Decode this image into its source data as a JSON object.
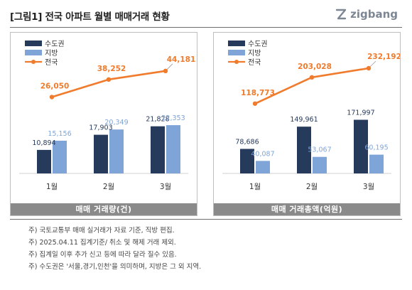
{
  "title": "[그림1] 전국 아파트 월별 매매거래 현황",
  "logo": {
    "text": "zigbang",
    "icon": "zigbang-logo-icon"
  },
  "colors": {
    "metro": "#263a5c",
    "regional": "#7fa4d8",
    "national": "#f07b2c",
    "footer": "#8a8a8a"
  },
  "chart_data": [
    {
      "type": "bar",
      "footer": "매매 거래량(건)",
      "legend": [
        "수도권",
        "지방",
        "전국"
      ],
      "categories": [
        "1월",
        "2월",
        "3월"
      ],
      "series": [
        {
          "name": "수도권",
          "type": "bar",
          "values": [
            10894,
            17903,
            21828
          ],
          "labels": [
            "10,894",
            "17,903",
            "21,828"
          ]
        },
        {
          "name": "지방",
          "type": "bar",
          "values": [
            15156,
            20349,
            22353
          ],
          "labels": [
            "15,156",
            "20,349",
            "22,353"
          ]
        },
        {
          "name": "전국",
          "type": "line",
          "values": [
            26050,
            38252,
            44181
          ],
          "labels": [
            "26,050",
            "38,252",
            "44,181"
          ]
        }
      ],
      "bar_max": 52000,
      "line_range": [
        -27000,
        51000
      ]
    },
    {
      "type": "bar",
      "footer": "매매 거래총액(억원)",
      "legend": [
        "수도권",
        "지방",
        "전국"
      ],
      "categories": [
        "1월",
        "2월",
        "3월"
      ],
      "series": [
        {
          "name": "수도권",
          "type": "bar",
          "values": [
            78686,
            149961,
            171997
          ],
          "labels": [
            "78,686",
            "149,961",
            "171,997"
          ]
        },
        {
          "name": "지방",
          "type": "bar",
          "values": [
            40087,
            53067,
            60195
          ],
          "labels": [
            "40,087",
            "53,067",
            "60,195"
          ]
        },
        {
          "name": "전국",
          "type": "line",
          "values": [
            118773,
            203028,
            232192
          ],
          "labels": [
            "118,773",
            "203,028",
            "232,192"
          ]
        }
      ],
      "bar_max": 360000,
      "line_range": [
        -105000,
        255000
      ]
    }
  ],
  "notes": [
    "주) 국토교통부 매매 실거래가 자료 기준, 직방 편집.",
    "주) 2025.04.11 집계기준/ 취소 및 해제 거래 제외.",
    "주) 집계일 이후 추가 신고 등에 따라 달라 질수 있음.",
    "주) 수도권은 '서울,경기,인천'을 의미하며, 지방은 그 외 지역."
  ]
}
